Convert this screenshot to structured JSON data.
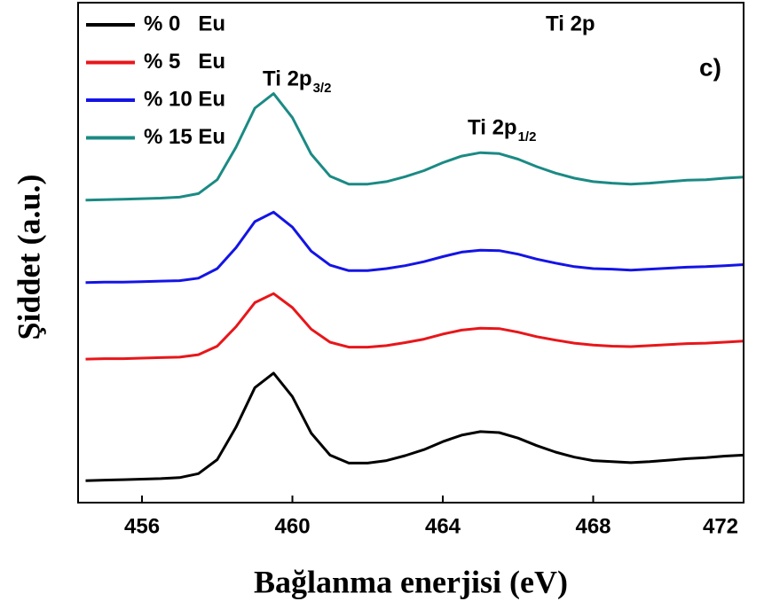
{
  "chart_data": {
    "type": "line",
    "xlabel": "Bağlanma enerjisi (eV)",
    "ylabel": "Şiddet (a.u.)",
    "xlim": [
      454.3,
      472
    ],
    "xticks": [
      456,
      460,
      464,
      468,
      472
    ],
    "ylim": [
      0,
      100
    ],
    "legend": "upper left",
    "annotations": [
      {
        "text": "Ti 2p"
      },
      {
        "text": "c)"
      },
      {
        "text": "Ti 2p",
        "sub": "3/2"
      },
      {
        "text": "Ti 2p",
        "sub": "1/2"
      }
    ],
    "x": [
      454.5,
      455,
      455.5,
      456,
      456.5,
      457,
      457.5,
      458,
      458.5,
      459,
      459.5,
      460,
      460.5,
      461,
      461.5,
      462,
      462.5,
      463,
      463.5,
      464,
      464.5,
      465,
      465.5,
      466,
      466.5,
      467,
      467.5,
      468,
      468.5,
      469,
      469.5,
      470,
      470.5,
      471,
      471.5,
      472
    ],
    "series": [
      {
        "name": "% 0   Eu",
        "color": "#000000",
        "values": [
          4.4,
          4.5,
          4.6,
          4.7,
          4.8,
          5.0,
          5.8,
          8.6,
          15.1,
          23.0,
          25.9,
          21.2,
          13.9,
          9.5,
          7.9,
          7.9,
          8.4,
          9.4,
          10.6,
          12.2,
          13.5,
          14.2,
          14.0,
          12.9,
          11.4,
          10.1,
          9.1,
          8.4,
          8.2,
          8.0,
          8.2,
          8.5,
          8.8,
          9.0,
          9.3,
          9.5
        ]
      },
      {
        "name": "% 5   Eu",
        "color": "#e8161a",
        "values": [
          28.7,
          28.8,
          28.8,
          28.9,
          29.0,
          29.1,
          29.6,
          31.3,
          35.2,
          40.0,
          41.8,
          39.0,
          34.7,
          32.1,
          31.1,
          31.1,
          31.4,
          32.0,
          32.7,
          33.7,
          34.5,
          34.9,
          34.8,
          34.1,
          33.2,
          32.5,
          31.9,
          31.5,
          31.3,
          31.2,
          31.4,
          31.6,
          31.8,
          31.9,
          32.1,
          32.3
        ]
      },
      {
        "name": "% 10 Eu",
        "color": "#1414e6",
        "values": [
          44.0,
          44.1,
          44.1,
          44.2,
          44.3,
          44.4,
          44.9,
          46.8,
          51.0,
          56.2,
          58.1,
          55.1,
          50.3,
          47.5,
          46.4,
          46.4,
          46.8,
          47.4,
          48.2,
          49.2,
          50.1,
          50.5,
          50.4,
          49.7,
          48.7,
          47.9,
          47.2,
          46.8,
          46.7,
          46.5,
          46.7,
          46.9,
          47.1,
          47.2,
          47.4,
          47.6
        ]
      },
      {
        "name": "% 15 Eu",
        "color": "#1b8a84",
        "values": [
          60.5,
          60.6,
          60.7,
          60.8,
          60.9,
          61.1,
          61.8,
          64.6,
          71.1,
          78.9,
          81.8,
          77.0,
          69.7,
          65.3,
          63.7,
          63.7,
          64.2,
          65.2,
          66.4,
          68.0,
          69.3,
          70.0,
          69.8,
          68.7,
          67.2,
          65.9,
          64.9,
          64.2,
          63.9,
          63.7,
          63.9,
          64.2,
          64.5,
          64.6,
          64.9,
          65.1
        ]
      }
    ]
  }
}
